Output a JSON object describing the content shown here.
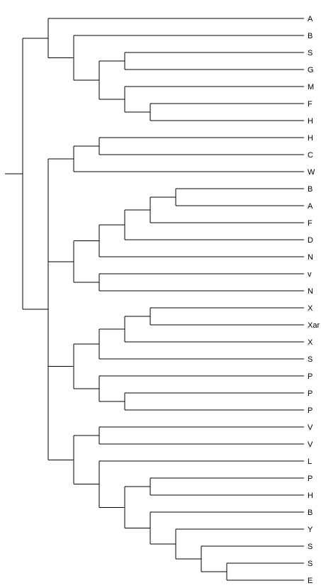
{
  "tree": {
    "type": "cladogram",
    "line_color": "#000000",
    "label_color": "#000000",
    "root": {
      "children": [
        {
          "children": [
            {
              "label": "A"
            },
            {
              "children": [
                {
                  "label": "B"
                },
                {
                  "children": [
                    {
                      "children": [
                        {
                          "label": "S"
                        },
                        {
                          "label": "G"
                        }
                      ]
                    },
                    {
                      "children": [
                        {
                          "label": "M"
                        },
                        {
                          "children": [
                            {
                              "label": "F"
                            },
                            {
                              "label": "H"
                            }
                          ]
                        }
                      ]
                    }
                  ]
                }
              ]
            }
          ]
        },
        {
          "children": [
            {
              "children": [
                {
                  "children": [
                    {
                      "label": "H"
                    },
                    {
                      "label": "C"
                    }
                  ]
                },
                {
                  "label": "W"
                }
              ]
            },
            {
              "children": [
                {
                  "children": [
                    {
                      "children": [
                        {
                          "children": [
                            {
                              "children": [
                                {
                                  "label": "B"
                                },
                                {
                                  "label": "A"
                                }
                              ]
                            },
                            {
                              "label": "F"
                            }
                          ]
                        },
                        {
                          "label": "D"
                        }
                      ]
                    },
                    {
                      "label": "N"
                    }
                  ]
                },
                {
                  "children": [
                    {
                      "label": "v"
                    },
                    {
                      "label": "N"
                    }
                  ]
                }
              ]
            },
            {
              "children": [
                {
                  "children": [
                    {
                      "children": [
                        {
                          "children": [
                            {
                              "label": "X"
                            },
                            {
                              "label": "Xar"
                            }
                          ]
                        },
                        {
                          "label": "X"
                        }
                      ]
                    },
                    {
                      "label": "S"
                    }
                  ]
                },
                {
                  "children": [
                    {
                      "label": "P"
                    },
                    {
                      "children": [
                        {
                          "label": "P"
                        },
                        {
                          "label": "P"
                        }
                      ]
                    }
                  ]
                }
              ]
            },
            {
              "children": [
                {
                  "children": [
                    {
                      "label": "V"
                    },
                    {
                      "label": "V"
                    }
                  ]
                },
                {
                  "children": [
                    {
                      "label": "L"
                    },
                    {
                      "children": [
                        {
                          "children": [
                            {
                              "label": "P"
                            },
                            {
                              "label": "H"
                            }
                          ]
                        },
                        {
                          "children": [
                            {
                              "label": "B"
                            },
                            {
                              "children": [
                                {
                                  "label": "Y"
                                },
                                {
                                  "children": [
                                    {
                                      "label": "S"
                                    },
                                    {
                                      "children": [
                                        {
                                          "label": "S"
                                        },
                                        {
                                          "label": "E"
                                        }
                                      ]
                                    }
                                  ]
                                }
                              ]
                            }
                          ]
                        }
                      ]
                    }
                  ]
                }
              ]
            }
          ]
        }
      ]
    }
  }
}
